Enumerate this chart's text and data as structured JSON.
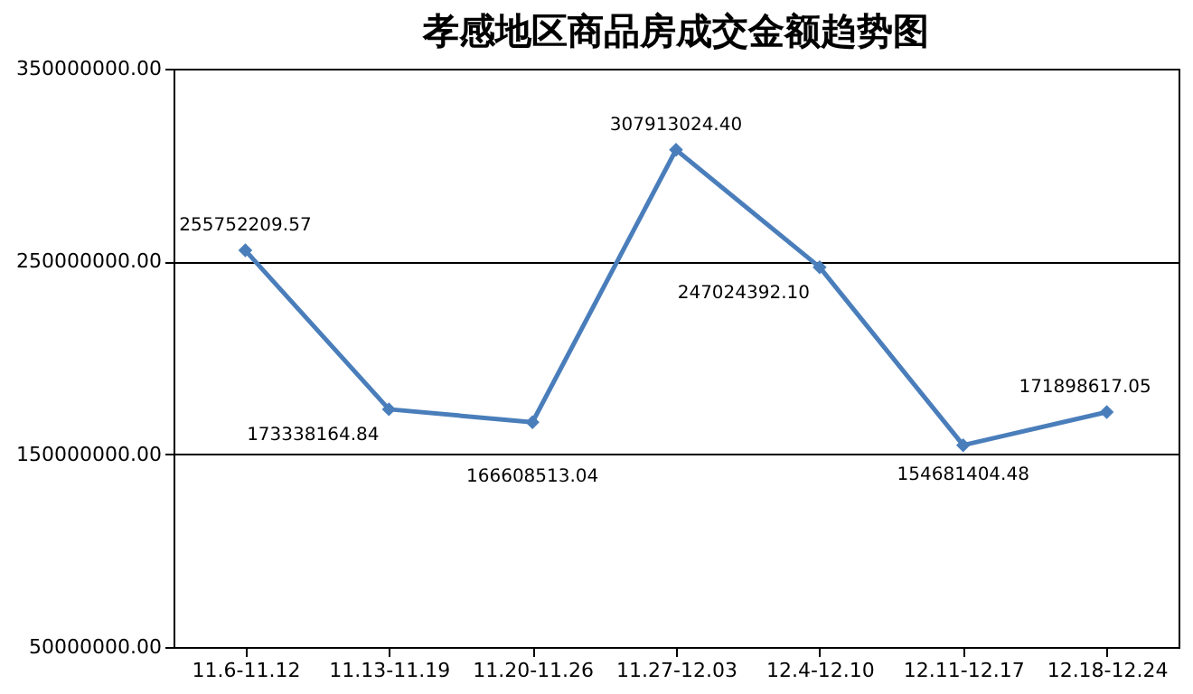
{
  "chart_data": {
    "type": "line",
    "title": "孝感地区商品房成交金额趋势图",
    "categories": [
      "11.6-11.12",
      "11.13-11.19",
      "11.20-11.26",
      "11.27-12.03",
      "12.4-12.10",
      "12.11-12.17",
      "12.18-12.24"
    ],
    "series": [
      {
        "color": "#4a7ebb",
        "values": [
          255752209.57,
          173338164.84,
          166608513.04,
          307913024.4,
          247024392.1,
          154681404.48,
          171898617.05
        ],
        "value_labels": [
          "255752209.57",
          "173338164.84",
          "166608513.04",
          "307913024.40",
          "247024392.10",
          "154681404.48",
          "171898617.05"
        ]
      }
    ],
    "ylim": [
      50000000,
      350000000
    ],
    "yticks": [
      {
        "value": 50000000,
        "label": "50000000.00"
      },
      {
        "value": 150000000,
        "label": "150000000.00"
      },
      {
        "value": 250000000,
        "label": "250000000.00"
      },
      {
        "value": 350000000,
        "label": "350000000.00"
      }
    ],
    "grid": "y",
    "marker": "diamond",
    "line_style": "solid",
    "legend": false
  }
}
